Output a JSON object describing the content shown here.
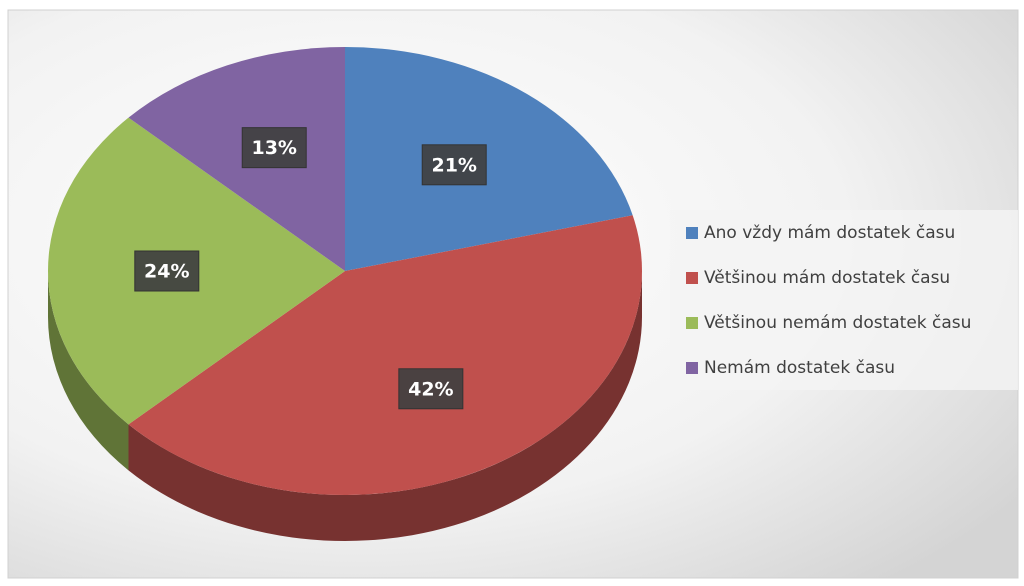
{
  "chart_data": {
    "type": "pie",
    "categories": [
      "Ano vždy mám dostatek času",
      "Většinou mám dostatek času",
      "Většinou nemám dostatek času",
      "Nemám dostatek času"
    ],
    "values": [
      21,
      42,
      24,
      13
    ],
    "value_labels": [
      "21%",
      "42%",
      "24%",
      "13%"
    ],
    "colors": [
      "#4f81bd",
      "#c0504d",
      "#9bbb59",
      "#8064a2"
    ],
    "legend": "right"
  }
}
